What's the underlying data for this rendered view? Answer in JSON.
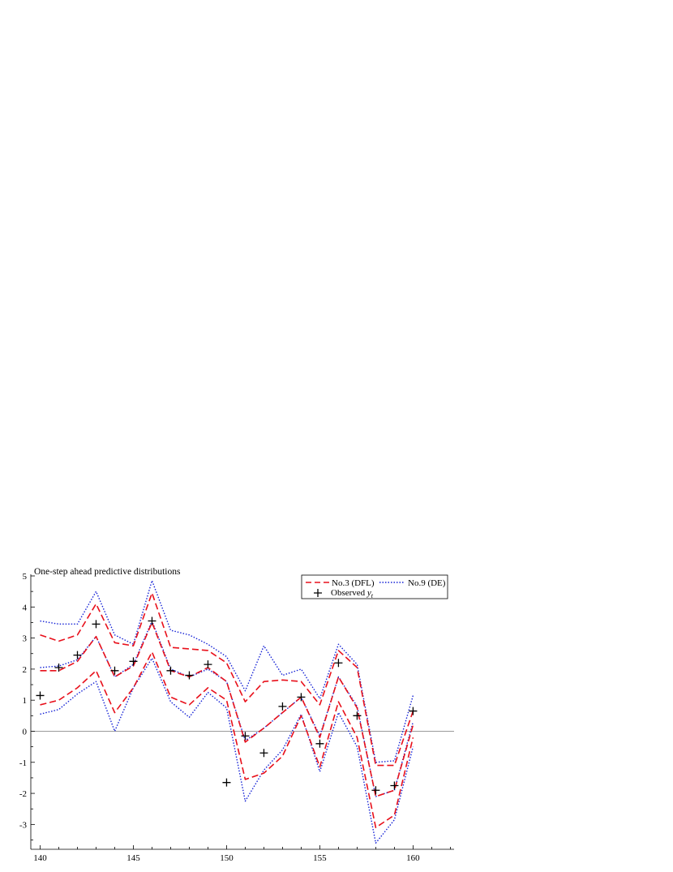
{
  "chart_data": {
    "type": "line",
    "title": "One-step ahead predictive distributions",
    "xlabel": "",
    "ylabel": "",
    "xlim": [
      139.5,
      162.2
    ],
    "ylim": [
      -3.8,
      5
    ],
    "x_ticks": [
      "140",
      "145",
      "150",
      "155",
      "160"
    ],
    "y_ticks": [
      "5",
      "4",
      "3",
      "2",
      "1",
      "0",
      "-1",
      "-2",
      "-3"
    ],
    "x_minor_step": 1,
    "y_minor_step": 0.5,
    "zero_line": true,
    "grid": false,
    "legend_position": "top-right",
    "x": [
      140,
      141,
      142,
      143,
      144,
      145,
      146,
      147,
      148,
      149,
      150,
      151,
      152,
      153,
      154,
      155,
      156,
      157,
      158,
      159,
      160
    ],
    "series": [
      {
        "name": "No.3 (DFL)",
        "style": "dashed",
        "color": "#e8101b",
        "lines": [
          [
            3.1,
            2.9,
            3.1,
            4.1,
            2.85,
            2.75,
            4.45,
            2.7,
            2.65,
            2.6,
            2.2,
            0.95,
            1.6,
            1.65,
            1.6,
            0.85,
            2.6,
            2.05,
            -1.1,
            -1.1,
            0.65
          ],
          [
            1.95,
            1.95,
            2.25,
            3.05,
            1.75,
            2.1,
            3.5,
            1.95,
            1.75,
            2.05,
            1.6,
            -0.35,
            0.1,
            0.6,
            1.1,
            -0.2,
            1.75,
            0.75,
            -2.1,
            -1.9,
            0.2
          ],
          [
            0.85,
            1.0,
            1.4,
            1.95,
            0.6,
            1.4,
            2.55,
            1.1,
            0.85,
            1.4,
            1.0,
            -1.55,
            -1.35,
            -0.8,
            0.5,
            -1.15,
            0.95,
            -0.2,
            -3.1,
            -2.7,
            -0.2
          ]
        ]
      },
      {
        "name": "No.9 (DE)",
        "style": "dotted",
        "color": "#1522d6",
        "lines": [
          [
            3.55,
            3.45,
            3.45,
            4.5,
            3.1,
            2.8,
            4.85,
            3.25,
            3.1,
            2.8,
            2.4,
            1.3,
            2.75,
            1.8,
            2.0,
            1.05,
            2.8,
            2.15,
            -1.0,
            -0.95,
            1.15
          ],
          [
            2.05,
            2.1,
            2.3,
            3.05,
            1.75,
            2.15,
            3.55,
            2.0,
            1.75,
            2.0,
            1.6,
            -0.3,
            0.1,
            0.6,
            1.1,
            -0.15,
            1.75,
            0.8,
            -2.1,
            -1.9,
            0.3
          ],
          [
            0.55,
            0.7,
            1.2,
            1.6,
            0.0,
            1.4,
            2.35,
            0.95,
            0.45,
            1.25,
            0.75,
            -2.25,
            -1.25,
            -0.6,
            0.55,
            -1.3,
            0.6,
            -0.5,
            -3.6,
            -2.85,
            -0.5
          ]
        ]
      }
    ],
    "observed": {
      "name_prefix": "Observed ",
      "name_symbol": "y",
      "name_subscript": "t",
      "marker": "plus",
      "color": "#000000",
      "values": [
        1.15,
        2.05,
        2.45,
        3.45,
        1.95,
        2.25,
        3.55,
        1.95,
        1.8,
        2.15,
        -1.65,
        -0.15,
        -0.7,
        0.8,
        1.1,
        -0.4,
        2.2,
        0.5,
        -1.9,
        -1.75,
        0.65
      ]
    }
  }
}
